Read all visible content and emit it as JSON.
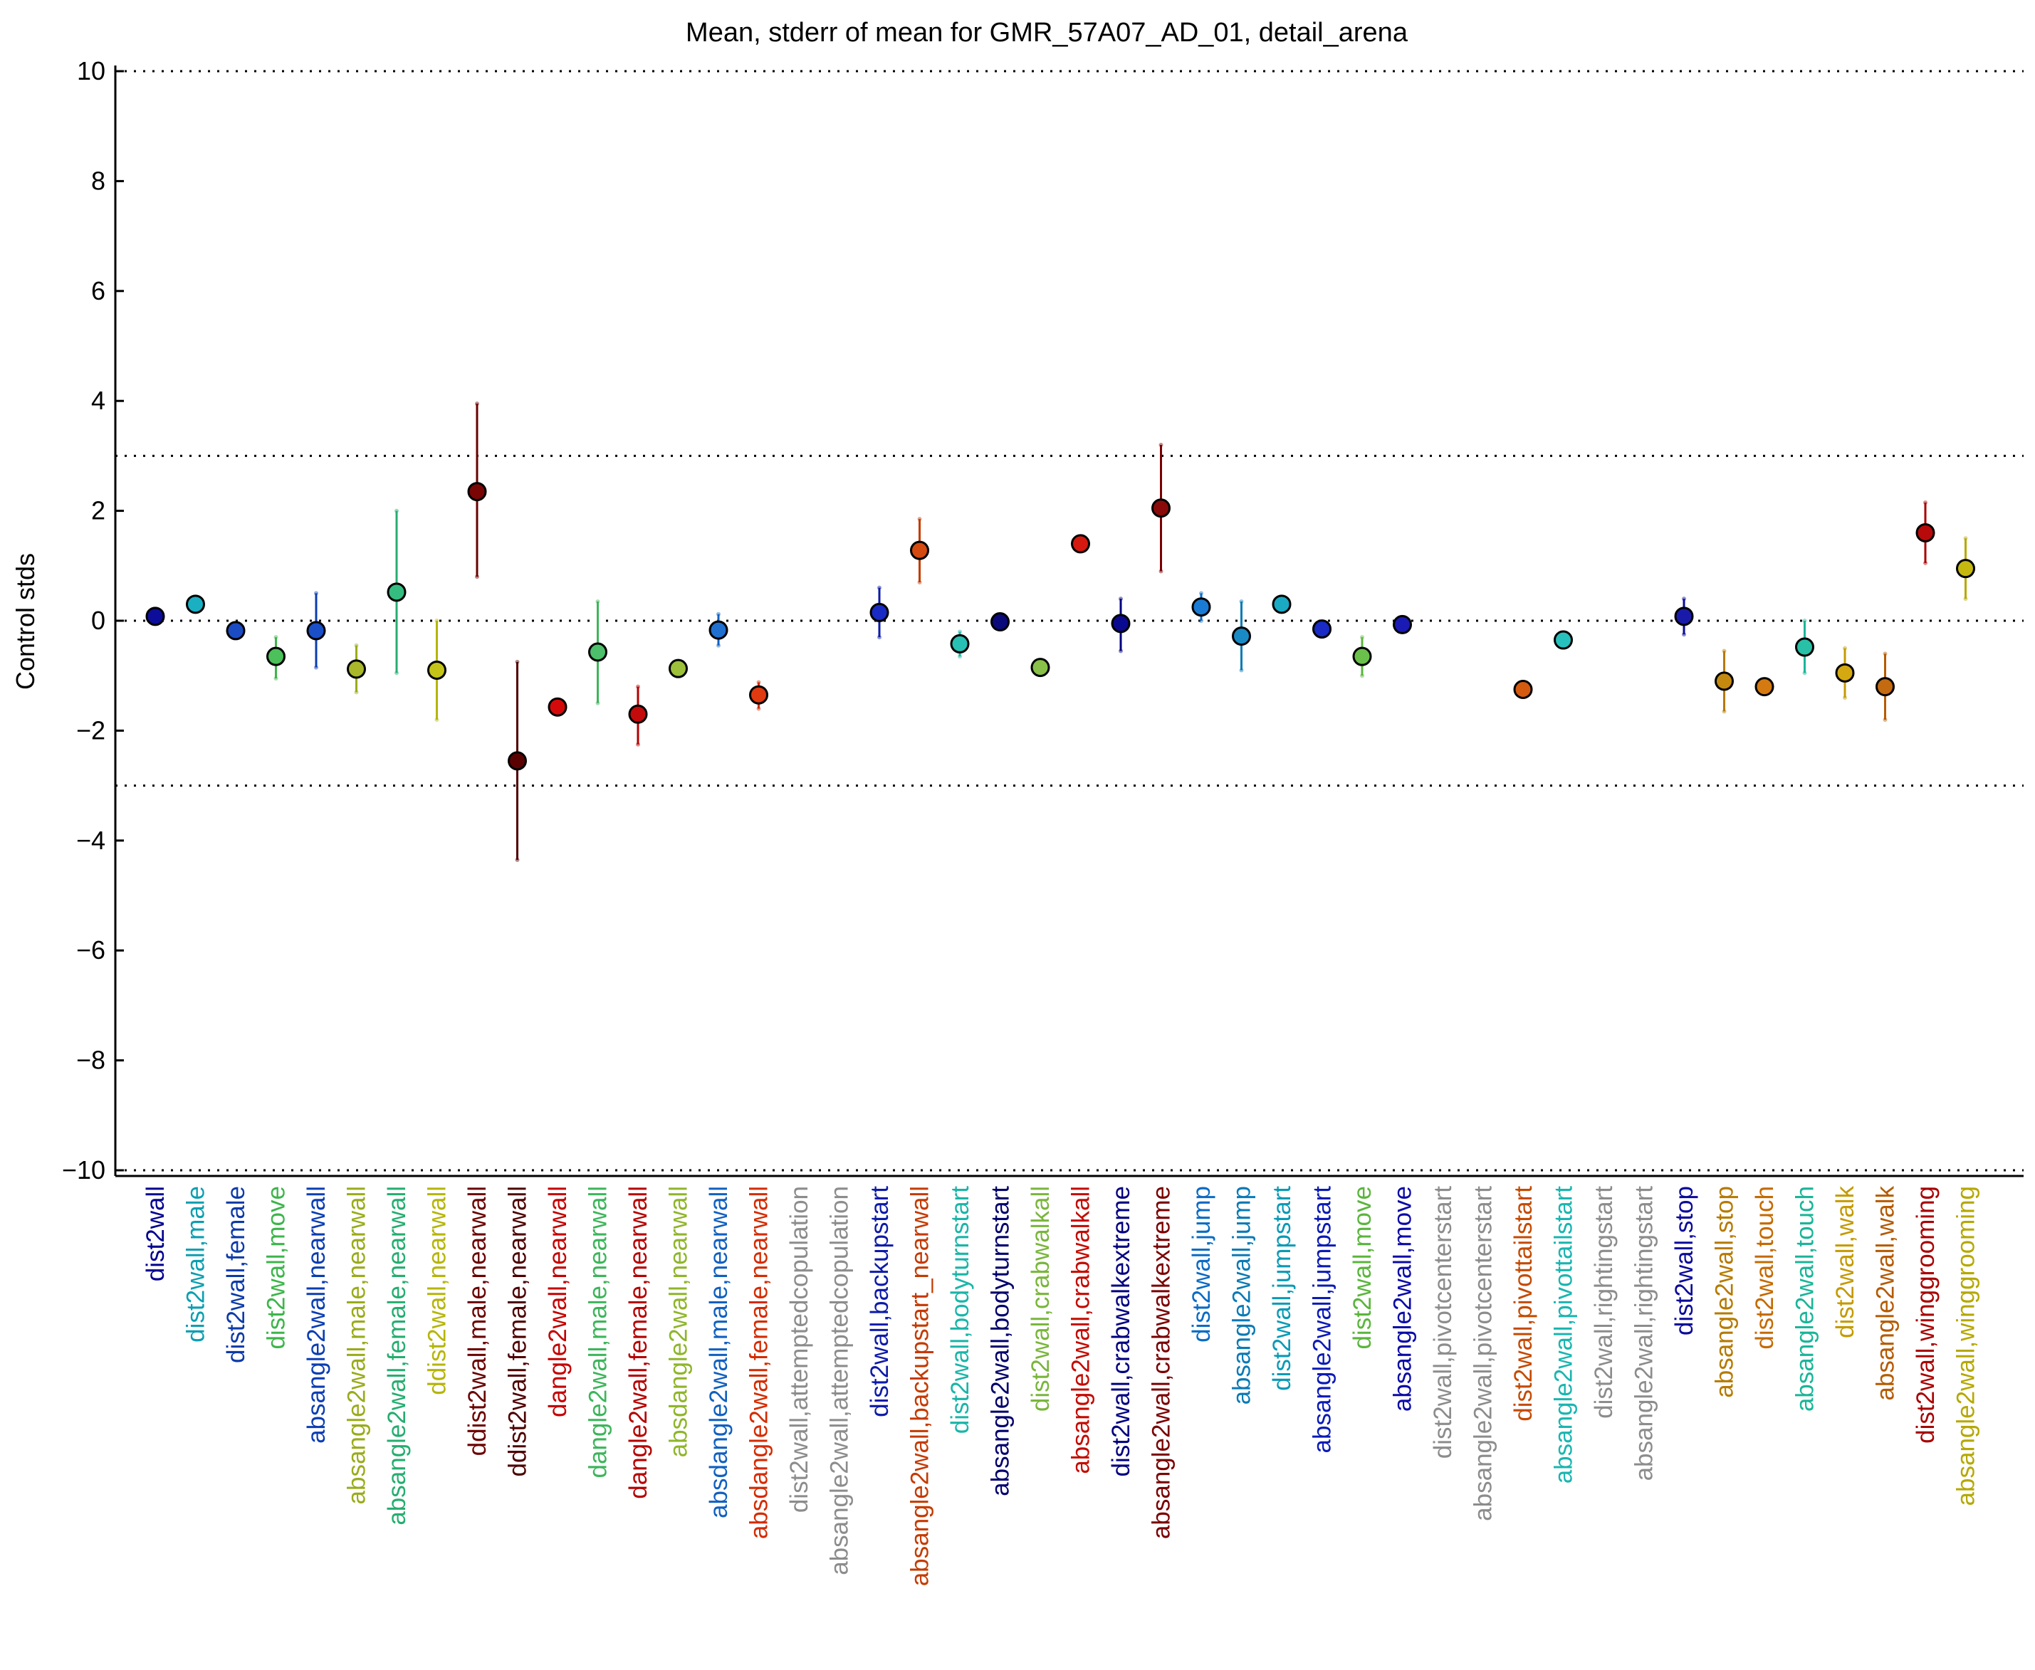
{
  "chart_data": {
    "type": "scatter",
    "title": "Mean, stderr of mean for GMR_57A07_AD_01, detail_arena",
    "ylabel": "Control stds",
    "xlabel": "",
    "ylim": [
      -10,
      10
    ],
    "yticks": [
      10,
      8,
      6,
      4,
      2,
      0,
      -2,
      -4,
      -6,
      -8,
      -10
    ],
    "ytick_labels": [
      "10",
      "8",
      "6",
      "4",
      "2",
      "0",
      "−2",
      "−4",
      "−6",
      "−8",
      "−10"
    ],
    "reference_lines": [
      10,
      3,
      0,
      -3,
      -10
    ],
    "grid": false,
    "points": [
      {
        "label": "dist2wall",
        "label_color": "#00008f",
        "mean": 0.08,
        "lo": 0.02,
        "hi": 0.14,
        "color": "#0d0d9c",
        "err_color": "#00008f"
      },
      {
        "label": "dist2wall,male",
        "label_color": "#0b9fb0",
        "mean": 0.3,
        "lo": 0.24,
        "hi": 0.36,
        "color": "#1ab0c2",
        "err_color": "#0b9fb0"
      },
      {
        "label": "dist2wall,female",
        "label_color": "#0d3aa8",
        "mean": -0.18,
        "lo": -0.3,
        "hi": -0.06,
        "color": "#1c4cc4",
        "err_color": "#0d3aa8"
      },
      {
        "label": "dist2wall,move",
        "label_color": "#3cb54a",
        "mean": -0.65,
        "lo": -1.05,
        "hi": -0.3,
        "color": "#4cc05a",
        "err_color": "#3cb54a"
      },
      {
        "label": "absangle2wall,nearwall",
        "label_color": "#0a3db3",
        "mean": -0.18,
        "lo": -0.85,
        "hi": 0.5,
        "color": "#1a4fc8",
        "err_color": "#0a3db3"
      },
      {
        "label": "absangle2wall,male,nearwall",
        "label_color": "#9aab1a",
        "mean": -0.88,
        "lo": -1.3,
        "hi": -0.45,
        "color": "#a8b82a",
        "err_color": "#9aab1a"
      },
      {
        "label": "absangle2wall,female,nearwall",
        "label_color": "#25ad70",
        "mean": 0.52,
        "lo": -0.95,
        "hi": 2.0,
        "color": "#35bd80",
        "err_color": "#25ad70"
      },
      {
        "label": "ddist2wall,nearwall",
        "label_color": "#b5b508",
        "mean": -0.9,
        "lo": -1.8,
        "hi": 0.0,
        "color": "#c4c418",
        "err_color": "#b5b508"
      },
      {
        "label": "ddist2wall,male,nearwall",
        "label_color": "#6b0000",
        "mean": 2.35,
        "lo": 0.8,
        "hi": 3.95,
        "color": "#7a0505",
        "err_color": "#6b0000"
      },
      {
        "label": "ddist2wall,female,nearwall",
        "label_color": "#4d0000",
        "mean": -2.55,
        "lo": -4.35,
        "hi": -0.75,
        "color": "#5a0202",
        "err_color": "#4d0000"
      },
      {
        "label": "dangle2wall,nearwall",
        "label_color": "#c40000",
        "mean": -1.57,
        "lo": -1.63,
        "hi": -1.51,
        "color": "#d40a0a",
        "err_color": "#c40000"
      },
      {
        "label": "dangle2wall,male,nearwall",
        "label_color": "#3cb55a",
        "mean": -0.57,
        "lo": -1.5,
        "hi": 0.35,
        "color": "#4cc06a",
        "err_color": "#3cb55a"
      },
      {
        "label": "dangle2wall,female,nearwall",
        "label_color": "#b50000",
        "mean": -1.7,
        "lo": -2.25,
        "hi": -1.2,
        "color": "#c40a0a",
        "err_color": "#b50000"
      },
      {
        "label": "absdangle2wall,nearwall",
        "label_color": "#8fb52a",
        "mean": -0.87,
        "lo": -0.93,
        "hi": -0.81,
        "color": "#9cc03a",
        "err_color": "#8fb52a"
      },
      {
        "label": "absdangle2wall,male,nearwall",
        "label_color": "#1060c0",
        "mean": -0.17,
        "lo": -0.45,
        "hi": 0.12,
        "color": "#2070d0",
        "err_color": "#1060c0"
      },
      {
        "label": "absdangle2wall,female,nearwall",
        "label_color": "#d42b00",
        "mean": -1.35,
        "lo": -1.6,
        "hi": -1.12,
        "color": "#e03a10",
        "err_color": "#d42b00"
      },
      {
        "label": "dist2wall,attemptedcopulation",
        "label_color": "#8c8c8c",
        "mean": null
      },
      {
        "label": "absangle2wall,attemptedcopulation",
        "label_color": "#8c8c8c",
        "mean": null
      },
      {
        "label": "dist2wall,backupstart",
        "label_color": "#0d1aa8",
        "mean": 0.15,
        "lo": -0.3,
        "hi": 0.6,
        "color": "#1a2ac4",
        "err_color": "#0d1aa8"
      },
      {
        "label": "absangle2wall,backupstart_nearwall",
        "label_color": "#c43a00",
        "mean": 1.28,
        "lo": 0.7,
        "hi": 1.85,
        "color": "#d44a10",
        "err_color": "#c43a00"
      },
      {
        "label": "dist2wall,bodyturnstart",
        "label_color": "#1ab5a8",
        "mean": -0.42,
        "lo": -0.65,
        "hi": -0.2,
        "color": "#28c0b4",
        "err_color": "#1ab5a8"
      },
      {
        "label": "absangle2wall,bodyturnstart",
        "label_color": "#00006b",
        "mean": -0.02,
        "lo": -0.08,
        "hi": 0.04,
        "color": "#0a0a7a",
        "err_color": "#00006b"
      },
      {
        "label": "dist2wall,crabwalkall",
        "label_color": "#7ab53c",
        "mean": -0.85,
        "lo": -0.91,
        "hi": -0.79,
        "color": "#88c04a",
        "err_color": "#7ab53c"
      },
      {
        "label": "absangle2wall,crabwalkall",
        "label_color": "#c40a00",
        "mean": 1.4,
        "lo": 1.34,
        "hi": 1.46,
        "color": "#d41a10",
        "err_color": "#c40a00"
      },
      {
        "label": "dist2wall,crabwalkextreme",
        "label_color": "#000080",
        "mean": -0.05,
        "lo": -0.55,
        "hi": 0.4,
        "color": "#0a0a90",
        "err_color": "#000080"
      },
      {
        "label": "absangle2wall,crabwalkextreme",
        "label_color": "#7a0000",
        "mean": 2.05,
        "lo": 0.9,
        "hi": 3.2,
        "color": "#8a0a0a",
        "err_color": "#7a0000"
      },
      {
        "label": "dist2wall,jump",
        "label_color": "#0a6bc4",
        "mean": 0.25,
        "lo": 0.0,
        "hi": 0.5,
        "color": "#1a7bd4",
        "err_color": "#0a6bc4"
      },
      {
        "label": "absangle2wall,jump",
        "label_color": "#0a7ab5",
        "mean": -0.28,
        "lo": -0.9,
        "hi": 0.35,
        "color": "#1a8ac4",
        "err_color": "#0a7ab5"
      },
      {
        "label": "dist2wall,jumpstart",
        "label_color": "#0a9ab5",
        "mean": 0.3,
        "lo": 0.24,
        "hi": 0.36,
        "color": "#1aaac4",
        "err_color": "#0a9ab5"
      },
      {
        "label": "absangle2wall,jumpstart",
        "label_color": "#0a1ab5",
        "mean": -0.15,
        "lo": -0.21,
        "hi": -0.09,
        "color": "#1a2ac4",
        "err_color": "#0a1ab5"
      },
      {
        "label": "dist2wall,move",
        "label_color": "#5ab53c",
        "mean": -0.65,
        "lo": -1.0,
        "hi": -0.3,
        "color": "#6ac04a",
        "err_color": "#5ab53c"
      },
      {
        "label": "absangle2wall,move",
        "label_color": "#0a0aa8",
        "mean": -0.07,
        "lo": -0.13,
        "hi": -0.01,
        "color": "#1a1ab5",
        "err_color": "#0a0aa8"
      },
      {
        "label": "dist2wall,pivotcenterstart",
        "label_color": "#8c8c8c",
        "mean": null
      },
      {
        "label": "absangle2wall,pivotcenterstart",
        "label_color": "#8c8c8c",
        "mean": null
      },
      {
        "label": "dist2wall,pivottailstart",
        "label_color": "#c44a00",
        "mean": -1.25,
        "lo": -1.31,
        "hi": -1.19,
        "color": "#d45a10",
        "err_color": "#c44a00"
      },
      {
        "label": "absangle2wall,pivottailstart",
        "label_color": "#1ab5b0",
        "mean": -0.35,
        "lo": -0.41,
        "hi": -0.29,
        "color": "#28c0bc",
        "err_color": "#1ab5b0"
      },
      {
        "label": "dist2wall,rightingstart",
        "label_color": "#8c8c8c",
        "mean": null
      },
      {
        "label": "absangle2wall,rightingstart",
        "label_color": "#8c8c8c",
        "mean": null
      },
      {
        "label": "dist2wall,stop",
        "label_color": "#0a0a9a",
        "mean": 0.08,
        "lo": -0.25,
        "hi": 0.4,
        "color": "#1a1aaa",
        "err_color": "#0a0a9a"
      },
      {
        "label": "absangle2wall,stop",
        "label_color": "#b57a00",
        "mean": -1.1,
        "lo": -1.65,
        "hi": -0.55,
        "color": "#c48a10",
        "err_color": "#b57a00"
      },
      {
        "label": "dist2wall,touch",
        "label_color": "#c46a00",
        "mean": -1.2,
        "lo": -1.26,
        "hi": -1.14,
        "color": "#d47a10",
        "err_color": "#c46a00"
      },
      {
        "label": "absangle2wall,touch",
        "label_color": "#1ab598",
        "mean": -0.48,
        "lo": -0.95,
        "hi": 0.0,
        "color": "#28c0a6",
        "err_color": "#1ab598"
      },
      {
        "label": "dist2wall,walk",
        "label_color": "#c49a00",
        "mean": -0.95,
        "lo": -1.4,
        "hi": -0.5,
        "color": "#d4a810",
        "err_color": "#c49a00"
      },
      {
        "label": "absangle2wall,walk",
        "label_color": "#b55a00",
        "mean": -1.2,
        "lo": -1.8,
        "hi": -0.6,
        "color": "#c46a10",
        "err_color": "#b55a00"
      },
      {
        "label": "dist2wall,winggrooming",
        "label_color": "#a80000",
        "mean": 1.6,
        "lo": 1.05,
        "hi": 2.15,
        "color": "#b80a0a",
        "err_color": "#a80000"
      },
      {
        "label": "absangle2wall,winggrooming",
        "label_color": "#b5a800",
        "mean": 0.95,
        "lo": 0.4,
        "hi": 1.5,
        "color": "#c4b810",
        "err_color": "#b5a800"
      }
    ]
  }
}
